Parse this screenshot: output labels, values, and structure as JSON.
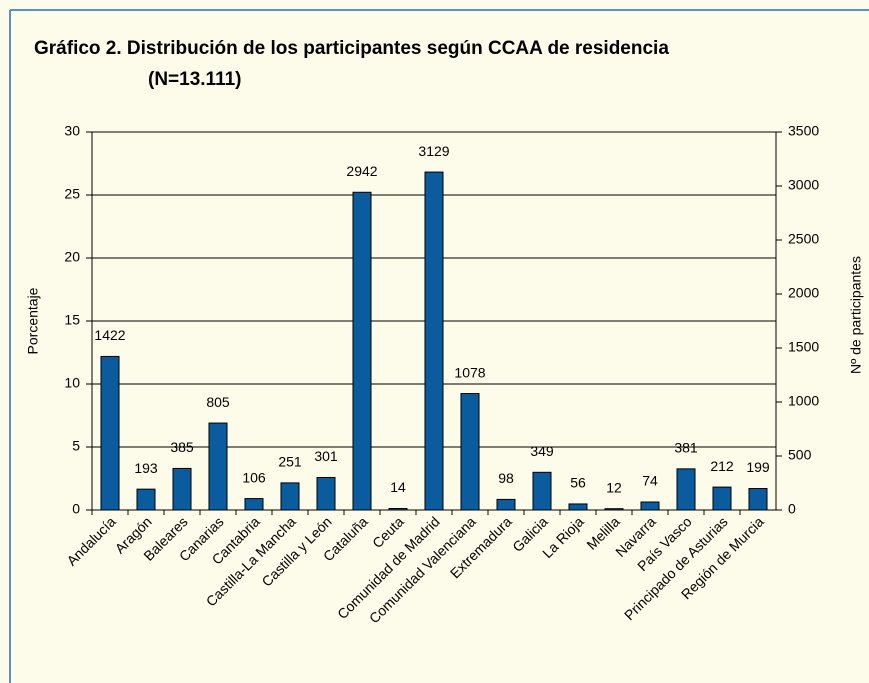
{
  "chart_data": {
    "type": "bar",
    "title": "Gráfico 2. Distribución de los participantes según CCAA de residencia",
    "subtitle": "(N=13.111)",
    "y_label": "Porcentaje",
    "y2_label": "Nº de participantes",
    "categories": [
      "Andalucía",
      "Aragón",
      "Baleares",
      "Canarias",
      "Cantabria",
      "Castilla-La Mancha",
      "Castilla y León",
      "Cataluña",
      "Ceuta",
      "Comunidad de Madrid",
      "Comunidad Valenciana",
      "Extremadura",
      "Galicia",
      "La Rioja",
      "Melilla",
      "Navarra",
      "País Vasco",
      "Principado de Asturias",
      "Región de Murcia"
    ],
    "series": [
      {
        "name": "Nº de participantes",
        "color": "#0b5c9e",
        "axis": "y2",
        "values": [
          1422,
          193,
          385,
          805,
          106,
          251,
          301,
          2942,
          14,
          3129,
          1078,
          98,
          349,
          56,
          12,
          74,
          381,
          212,
          199
        ]
      }
    ],
    "ylim": [
      0,
      30
    ],
    "yticks": [
      0,
      5,
      10,
      15,
      20,
      25,
      30
    ],
    "y2lim": [
      0,
      3500
    ],
    "y2ticks": [
      0,
      500,
      1000,
      1500,
      2000,
      2500,
      3000,
      3500
    ],
    "grid": true
  }
}
